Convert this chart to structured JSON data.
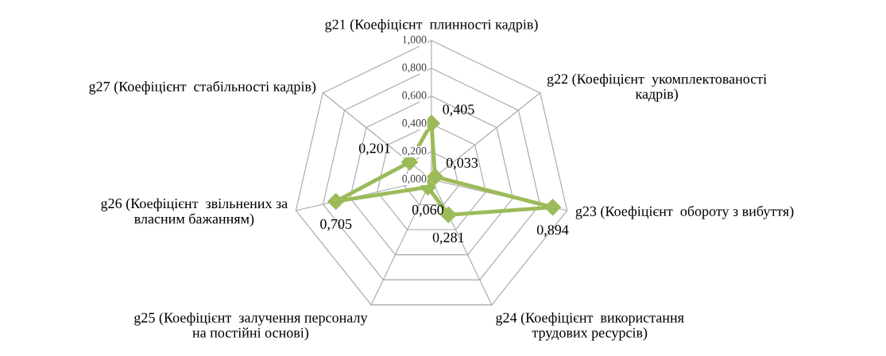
{
  "chart_data": {
    "type": "radar",
    "categories": [
      "g21 (Коефіцієнт  плинності кадрів)",
      "g22 (Коефіцієнт  укомплектованості\nкадрів)",
      "g23 (Коефіцієнт  обороту з вибуття)",
      "g24 (Коефіцієнт  використання\nтрудових ресурсів)",
      "g25 (Коефіцієнт  залучення персоналу\nна постійні основі)",
      "g26 (Коефіцієнт  звільнених за\nвласним бажанням)",
      "g27 (Коефіцієнт  стабільності кадрів)"
    ],
    "series": [
      {
        "color": "#9bbb59",
        "values": [
          0.405,
          0.033,
          0.894,
          0.281,
          0.06,
          0.705,
          0.201
        ],
        "value_labels": [
          "0,405",
          "0,033",
          "0,894",
          "0,281",
          "0,060",
          "0,705",
          "0,201"
        ]
      }
    ],
    "ylim": [
      0,
      1
    ],
    "yticks": [
      {
        "value": 0,
        "label": "0,000"
      },
      {
        "value": 0.2,
        "label": "0,200"
      },
      {
        "value": 0.4,
        "label": "0,400"
      },
      {
        "value": 0.6,
        "label": "0,600"
      },
      {
        "value": 0.8,
        "label": "0,800"
      },
      {
        "value": 1.0,
        "label": "1,000"
      }
    ],
    "grid": true,
    "marker": "diamond",
    "line_style": "solid"
  }
}
